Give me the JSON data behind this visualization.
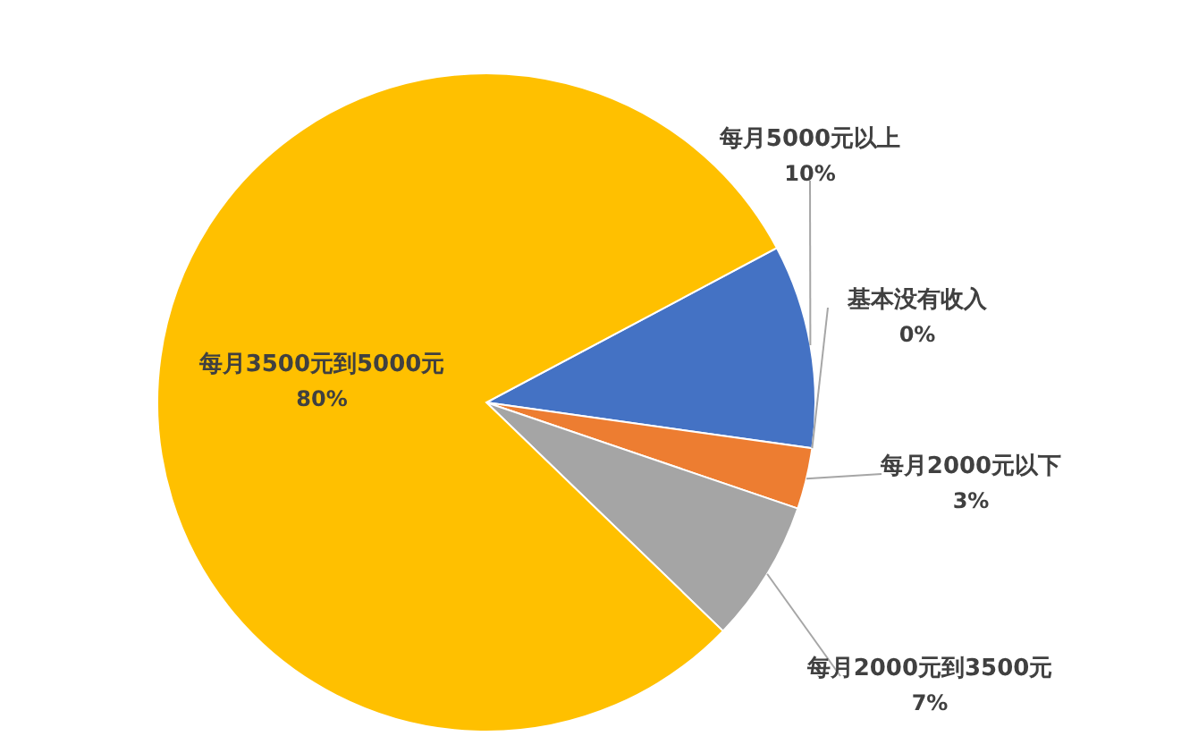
{
  "chart_data": {
    "type": "pie",
    "categories": [
      "每月5000元以上",
      "基本没有收入",
      "每月2000元以下",
      "每月2000元到3500元",
      "每月3500元到5000元"
    ],
    "values": [
      10,
      0,
      3,
      7,
      80
    ],
    "colors": [
      "#4472c4",
      "#5b9bd5",
      "#ed7d31",
      "#a5a5a5",
      "#ffc000"
    ],
    "value_labels": [
      "10%",
      "0%",
      "3%",
      "7%",
      "80%"
    ],
    "legend": false
  }
}
